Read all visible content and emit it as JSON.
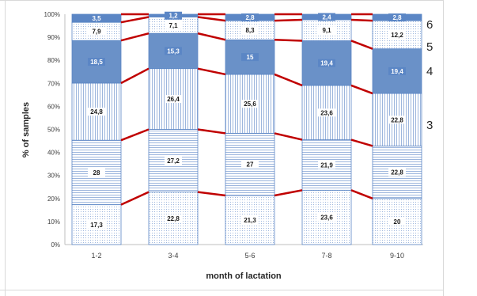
{
  "chart_data": {
    "type": "bar",
    "stacked": true,
    "categories": [
      "1-2",
      "3-4",
      "5-6",
      "7-8",
      "9-10"
    ],
    "series": [
      {
        "values": [
          17.3,
          22.8,
          21.3,
          23.6,
          20
        ],
        "fill": "#f4f8fc",
        "pattern": "dots"
      },
      {
        "values": [
          28,
          27.2,
          27,
          21.9,
          22.8
        ],
        "fill": "#e9f0f8",
        "pattern": "hlines"
      },
      {
        "values": [
          24.8,
          26.4,
          25.6,
          23.6,
          22.8
        ],
        "fill": "#e3ecf6",
        "pattern": "vlines"
      },
      {
        "values": [
          18.5,
          15.3,
          15,
          19.4,
          19.4
        ],
        "fill": "#6a91c8",
        "pattern": "solid-dark"
      },
      {
        "values": [
          7.9,
          7.1,
          8.3,
          9.1,
          12.2
        ],
        "fill": "#f4f8fc",
        "pattern": "dots"
      },
      {
        "values": [
          3.5,
          1.2,
          2.8,
          2.4,
          2.8
        ],
        "fill": "#5b86c5",
        "pattern": "solid-dark"
      }
    ],
    "data_labels": [
      [
        "17,3",
        "22,8",
        "21,3",
        "23,6",
        "20"
      ],
      [
        "28",
        "27,2",
        "27",
        "21,9",
        "22,8"
      ],
      [
        "24,8",
        "26,4",
        "25,6",
        "23,6",
        "22,8"
      ],
      [
        "18,5",
        "15,3",
        "15",
        "19,4",
        "19,4"
      ],
      [
        "7,9",
        "7,1",
        "8,3",
        "9,1",
        "12,2"
      ],
      [
        "3,5",
        "1,2",
        "2,8",
        "2,4",
        "2,8"
      ]
    ],
    "ylim": [
      0,
      100
    ],
    "yticks": [
      "0%",
      "10%",
      "20%",
      "30%",
      "40%",
      "50%",
      "60%",
      "70%",
      "80%",
      "90%",
      "100%"
    ],
    "xlabel": "month of lactation",
    "ylabel": "% of samples",
    "right_labels": [
      "3",
      "4",
      "5",
      "6"
    ],
    "line_color": "#c00000",
    "bar_border_color": "#5b86c5",
    "grid": false
  }
}
